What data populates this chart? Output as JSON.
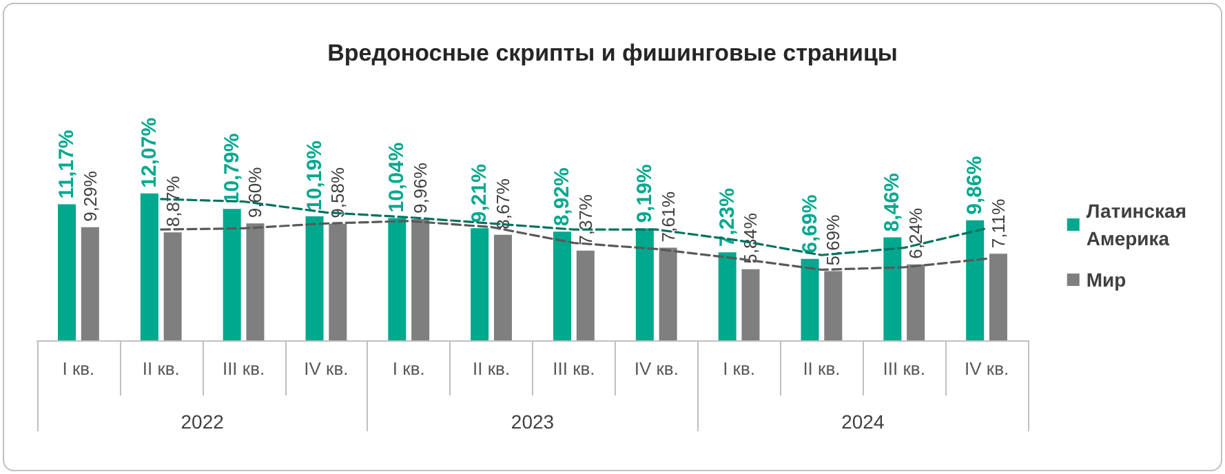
{
  "chart_data": {
    "type": "bar",
    "title": "Вредоносные скрипты и фишинговые страницы",
    "categories": [
      "I кв.",
      "II кв.",
      "III кв.",
      "IV кв.",
      "I кв.",
      "II кв.",
      "III кв.",
      "IV кв.",
      "I кв.",
      "II кв.",
      "III кв.",
      "IV кв."
    ],
    "annotations": [
      "2022",
      "2023",
      "2024"
    ],
    "series": [
      {
        "name": "Латинская Америка",
        "color": "#00a88e",
        "values": [
          11.17,
          12.07,
          10.79,
          10.19,
          10.04,
          9.21,
          8.92,
          9.19,
          7.23,
          6.69,
          8.46,
          9.86
        ],
        "value_labels": [
          "11,17%",
          "12,07%",
          "10,79%",
          "10,19%",
          "10,04%",
          "9,21%",
          "8,92%",
          "9,19%",
          "7,23%",
          "6,69%",
          "8,46%",
          "9,86%"
        ]
      },
      {
        "name": "Мир",
        "color": "#7f7f7f",
        "values": [
          9.29,
          8.87,
          9.6,
          9.58,
          9.96,
          8.67,
          7.37,
          7.61,
          5.84,
          5.69,
          6.24,
          7.11
        ],
        "value_labels": [
          "9,29%",
          "8,87%",
          "9,60%",
          "9,58%",
          "9,96%",
          "8,67%",
          "7,37%",
          "7,61%",
          "5,84%",
          "5,69%",
          "6,24%",
          "7,11%"
        ]
      },
      {
        "type": "line",
        "color": "#00735f",
        "line_style": "dashed",
        "marker": "none",
        "values": [
          null,
          11.6,
          11.4,
          10.5,
          10.1,
          9.6,
          9.1,
          9.1,
          8.2,
          7.0,
          7.6,
          9.2
        ]
      },
      {
        "type": "line",
        "color": "#595959",
        "line_style": "dashed",
        "marker": "none",
        "values": [
          null,
          9.1,
          9.2,
          9.6,
          9.8,
          9.3,
          8.0,
          7.5,
          6.7,
          5.8,
          6.0,
          6.7
        ]
      }
    ],
    "legend": "right",
    "grid": false
  }
}
